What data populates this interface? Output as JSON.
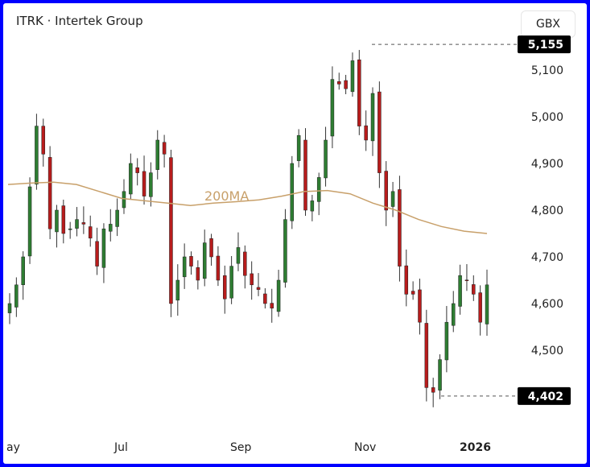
{
  "header": {
    "title": "ITRK · Intertek Group",
    "currency": "GBX"
  },
  "chart_data": {
    "type": "candlestick",
    "title": "ITRK · Intertek Group",
    "ylabel": "GBX",
    "ylim": [
      4350,
      5200
    ],
    "y_ticks": [
      "5,100",
      "5,000",
      "4,900",
      "4,800",
      "4,700",
      "4,600",
      "4,500"
    ],
    "y_tick_values": [
      5100,
      5000,
      4900,
      4800,
      4700,
      4600,
      4500
    ],
    "x_ticks": [
      "ay",
      "Jul",
      "Sep",
      "Nov",
      "2026"
    ],
    "high_label": "5,155",
    "high_value": 5155,
    "low_label": "4,402",
    "low_value": 4402,
    "closes": [
      4600,
      4640,
      4700,
      4850,
      4980,
      4920,
      4760,
      4800,
      4750,
      4760,
      4780,
      4770,
      4740,
      4680,
      4760,
      4770,
      4800,
      4840,
      4900,
      4880,
      4830,
      4880,
      4950,
      4920,
      4600,
      4650,
      4700,
      4680,
      4650,
      4730,
      4700,
      4650,
      4610,
      4680,
      4720,
      4660,
      4640,
      4630,
      4600,
      4590,
      4650,
      4780,
      4900,
      4960,
      4800,
      4820,
      4870,
      4950,
      5080,
      5070,
      5060,
      5120,
      4980,
      4950,
      5050,
      4880,
      4800,
      4840,
      4680,
      4620,
      4620,
      4560,
      4420,
      4410,
      4480,
      4560,
      4600,
      4660,
      4650,
      4620,
      4560,
      4640
    ],
    "ma_label": "200MA",
    "ma200": [
      4855,
      4858,
      4860,
      4855,
      4840,
      4825,
      4820,
      4815,
      4810,
      4815,
      4818,
      4822,
      4830,
      4840,
      4842,
      4835,
      4815,
      4800,
      4780,
      4765,
      4755,
      4750
    ],
    "colors": {
      "up": "#2e7d32",
      "down": "#b71c1c",
      "ma": "#c8a06a"
    }
  }
}
